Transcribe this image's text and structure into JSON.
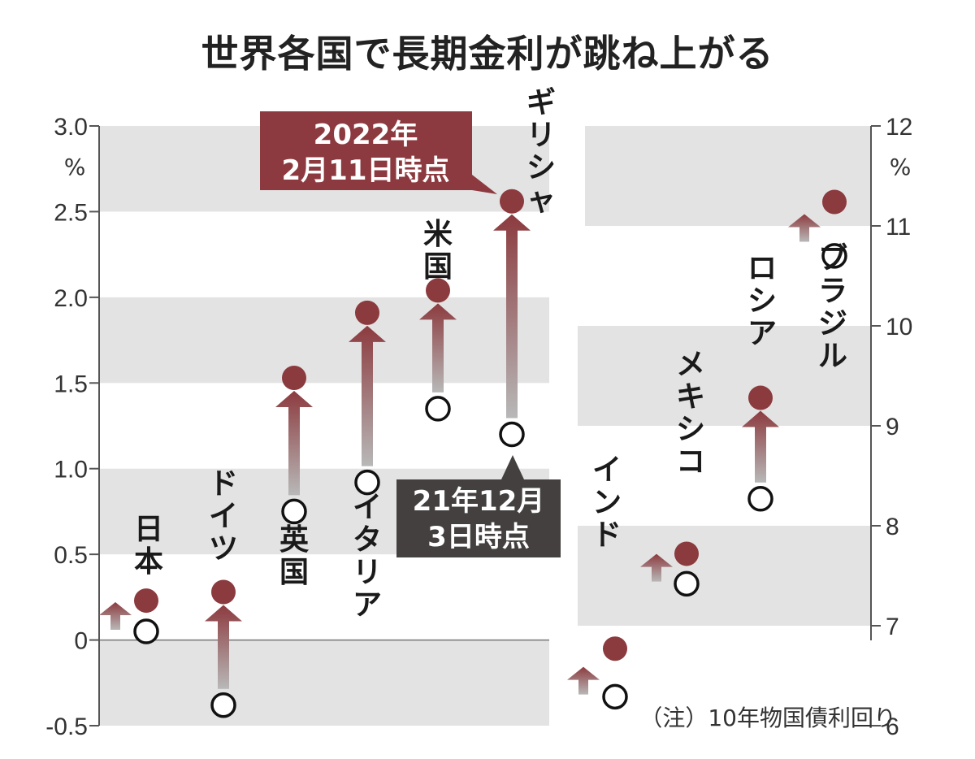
{
  "title": "世界各国で長期金利が跳ね上がる",
  "note": "（注）10年物国債利回り",
  "callouts": {
    "after": [
      "2022年",
      "2月11日時点"
    ],
    "before": [
      "21年12月",
      "3日時点"
    ]
  },
  "colors": {
    "after_dot": "#8b3a3e",
    "callout_after": "#8c3a3f",
    "callout_before": "#444040",
    "band": "#e3e3e3",
    "arrow_top": "#8c3b3f",
    "arrow_bottom": "#b8b8b8"
  },
  "chart_data": [
    {
      "type": "dot-arrow",
      "unit": "%",
      "ylim": [
        -0.5,
        3.0
      ],
      "yticks": [
        "3.0",
        "2.5",
        "2.0",
        "1.5",
        "1.0",
        "0.5",
        "0",
        "-0.5"
      ],
      "series": [
        {
          "name": "2022年2月11日時点"
        },
        {
          "name": "21年12月3日時点"
        }
      ],
      "countries": [
        {
          "name": "日本",
          "from": 0.05,
          "to": 0.23
        },
        {
          "name": "ドイツ",
          "from": -0.38,
          "to": 0.28
        },
        {
          "name": "英国",
          "from": 0.75,
          "to": 1.53
        },
        {
          "name": "イタリア",
          "from": 0.92,
          "to": 1.91
        },
        {
          "name": "米国",
          "from": 1.35,
          "to": 2.04
        },
        {
          "name": "ギリシャ",
          "from": 1.2,
          "to": 2.56
        }
      ]
    },
    {
      "type": "dot-arrow",
      "unit": "%",
      "ylim": [
        6,
        12
      ],
      "yticks": [
        "12",
        "11",
        "10",
        "9",
        "8",
        "7",
        "6"
      ],
      "series": [
        {
          "name": "2022年2月11日時点"
        },
        {
          "name": "21年12月3日時点"
        }
      ],
      "countries": [
        {
          "name": "インド",
          "from": 6.29,
          "to": 6.77
        },
        {
          "name": "メキシコ",
          "from": 7.42,
          "to": 7.72
        },
        {
          "name": "ロシア",
          "from": 8.27,
          "to": 9.28
        },
        {
          "name": "ブラジル",
          "from": 10.7,
          "to": 11.24
        }
      ]
    }
  ]
}
